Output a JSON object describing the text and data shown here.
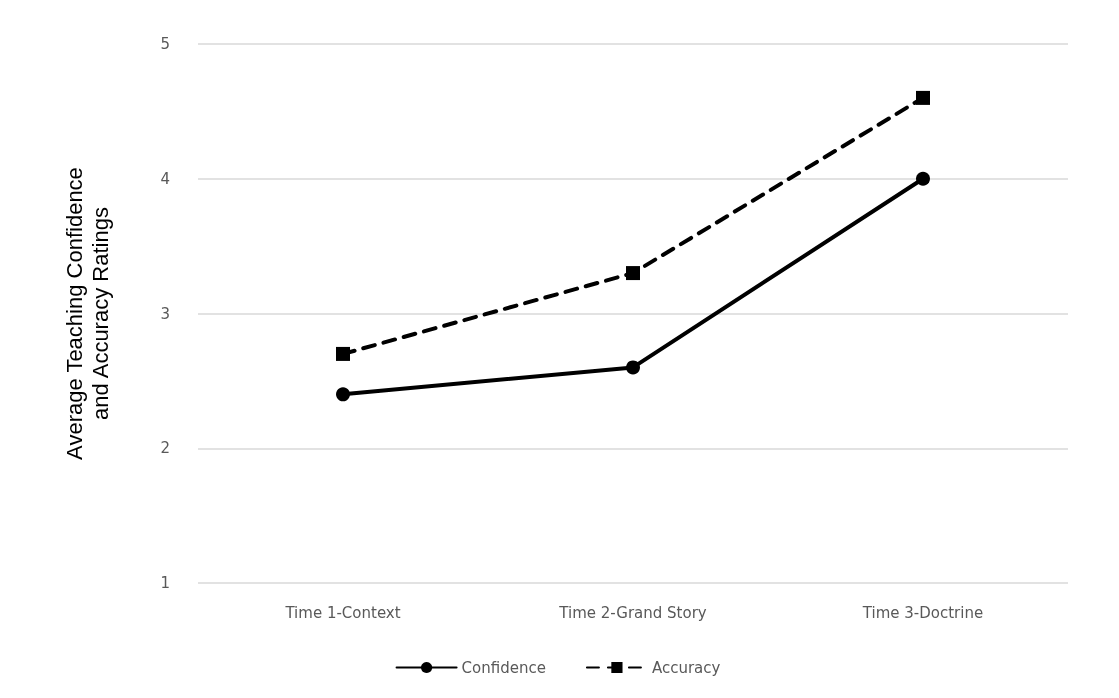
{
  "chart_data": {
    "type": "line",
    "ylabel": "Average Teaching Confidence\nand Accuracy Ratings",
    "categories": [
      "Time 1-Context",
      "Time 2-Grand Story",
      "Time 3-Doctrine"
    ],
    "series": [
      {
        "name": "Confidence",
        "color": "#000000",
        "values": [
          2.4,
          2.6,
          4.0
        ],
        "marker": "circle",
        "line_style": "solid"
      },
      {
        "name": "Accuracy",
        "color": "#000000",
        "values": [
          2.7,
          3.3,
          4.6
        ],
        "marker": "square",
        "line_style": "dashed"
      }
    ],
    "ylim": [
      1,
      5
    ],
    "yticks": [
      1,
      2,
      3,
      4,
      5
    ],
    "grid": "y",
    "legend": "bottom"
  }
}
